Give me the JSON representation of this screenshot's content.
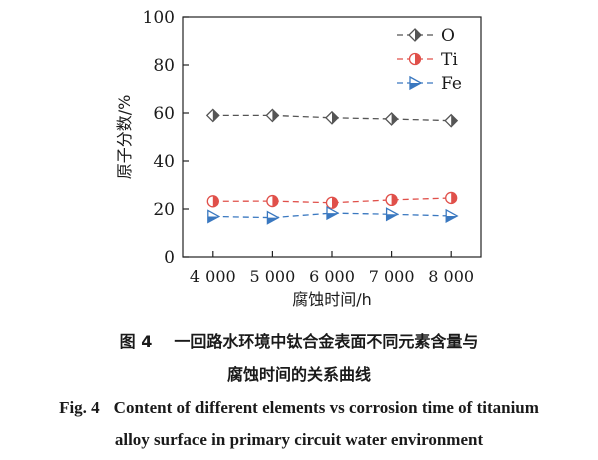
{
  "chart_data": {
    "type": "line",
    "xlabel": "腐蚀时间/h",
    "ylabel": "原子分数/%",
    "x_ticks": [
      "4 000",
      "5 000",
      "6 000",
      "7 000",
      "8 000"
    ],
    "y_ticks": [
      "0",
      "20",
      "40",
      "60",
      "80",
      "100"
    ],
    "x": [
      4000,
      5000,
      6000,
      7000,
      8000
    ],
    "xlim": [
      3500,
      8500
    ],
    "ylim": [
      0,
      100
    ],
    "grid": false,
    "legend": "top-right",
    "series": [
      {
        "name": "O",
        "values": [
          59.0,
          59.0,
          58.0,
          57.5,
          56.8
        ],
        "color": "#555555",
        "marker": "diamond"
      },
      {
        "name": "Ti",
        "values": [
          23.2,
          23.3,
          22.6,
          23.8,
          24.6
        ],
        "color": "#e0504a",
        "marker": "half-circle"
      },
      {
        "name": "Fe",
        "values": [
          16.9,
          16.4,
          18.3,
          17.8,
          17.1
        ],
        "color": "#3a78c0",
        "marker": "triangle-right"
      }
    ]
  },
  "caption": {
    "cn_label": "图 4",
    "cn_line1": "一回路水环境中钛合金表面不同元素含量与",
    "cn_line2": "腐蚀时间的关系曲线",
    "en_label": "Fig. 4",
    "en_line1": "Content of different elements vs corrosion time of titanium",
    "en_line2": "alloy surface in primary circuit water environment"
  }
}
